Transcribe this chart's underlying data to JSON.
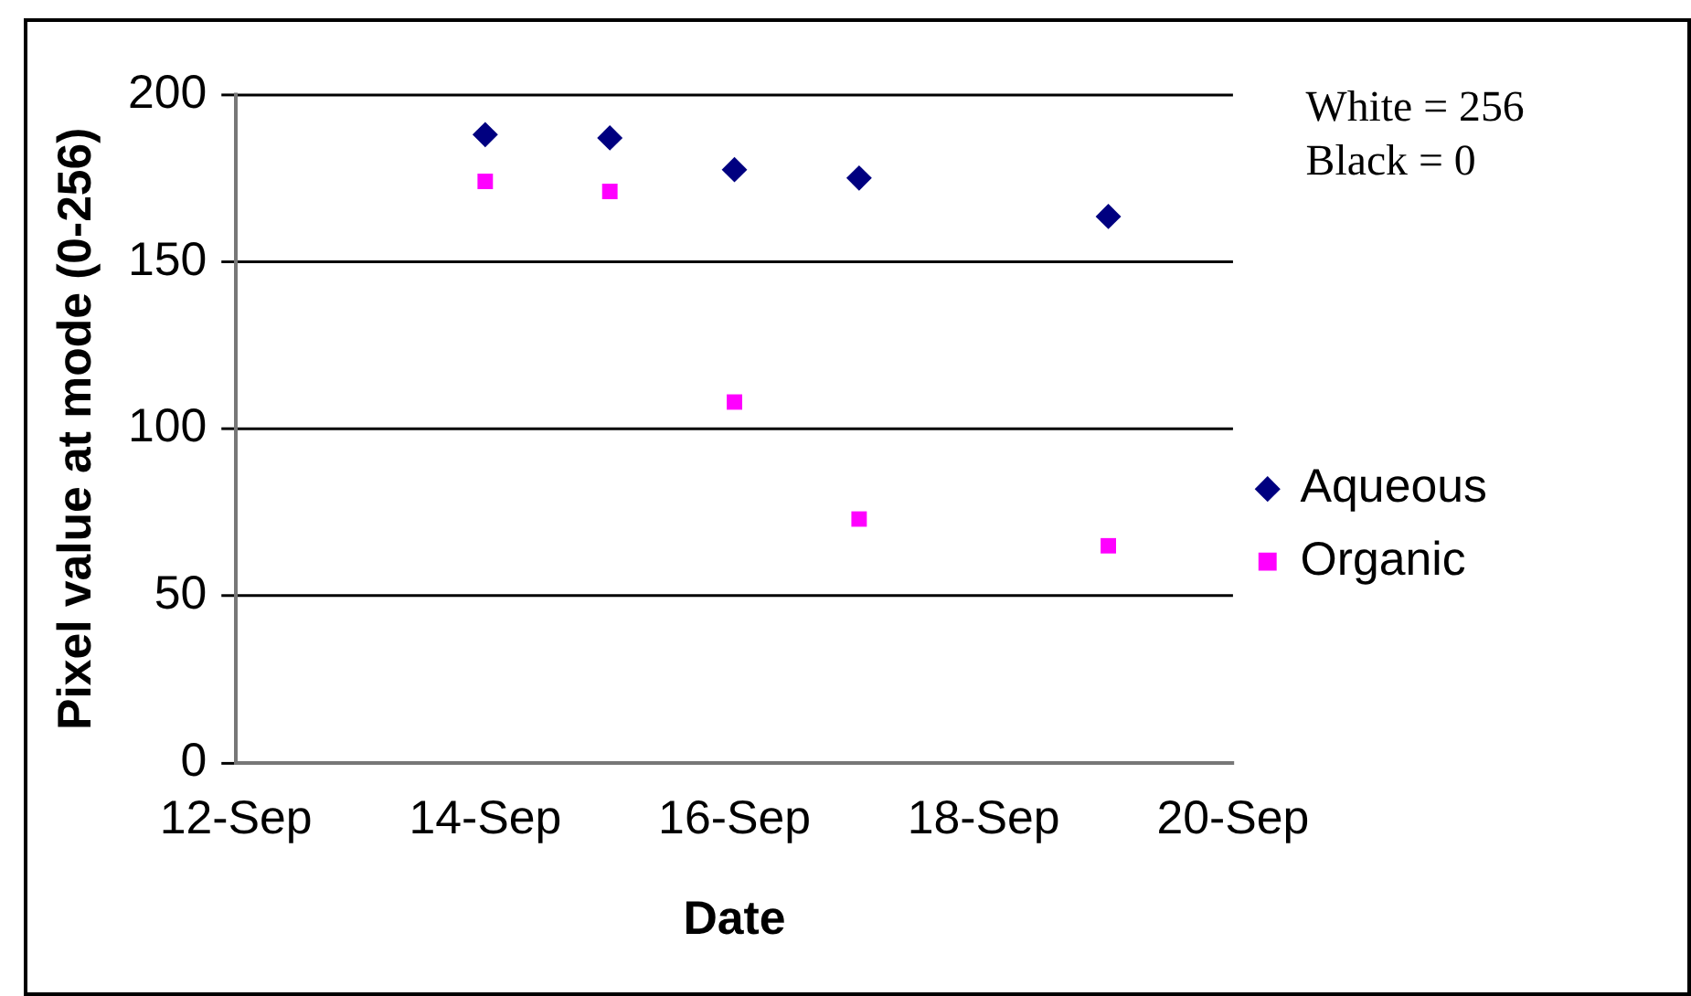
{
  "chart_data": {
    "type": "scatter",
    "xlabel": "Date",
    "ylabel": "Pixel value at mode (0-256)",
    "x": [
      "--09-14",
      "--09-15",
      "--09-16",
      "--09-17",
      "--09-19"
    ],
    "series": [
      {
        "name": "Aqueous",
        "color": "#000080",
        "marker": "diamond",
        "values": [
          188,
          187,
          177.5,
          175,
          163.5
        ]
      },
      {
        "name": "Organic",
        "color": "#ff00ff",
        "marker": "square",
        "values": [
          174,
          171,
          108,
          73,
          65
        ]
      }
    ],
    "xlim": [
      "--09-12",
      "--09-20"
    ],
    "xticks": [
      {
        "value": "--09-12",
        "label": "12-Sep"
      },
      {
        "value": "--09-14",
        "label": "14-Sep"
      },
      {
        "value": "--09-16",
        "label": "16-Sep"
      },
      {
        "value": "--09-18",
        "label": "18-Sep"
      },
      {
        "value": "--09-20",
        "label": "20-Sep"
      }
    ],
    "ylim": [
      0,
      200
    ],
    "yticks": [
      0,
      50,
      100,
      150,
      200
    ],
    "grid": "y",
    "legend": "right",
    "annotations": [
      "White = 256",
      "Black = 0"
    ]
  }
}
